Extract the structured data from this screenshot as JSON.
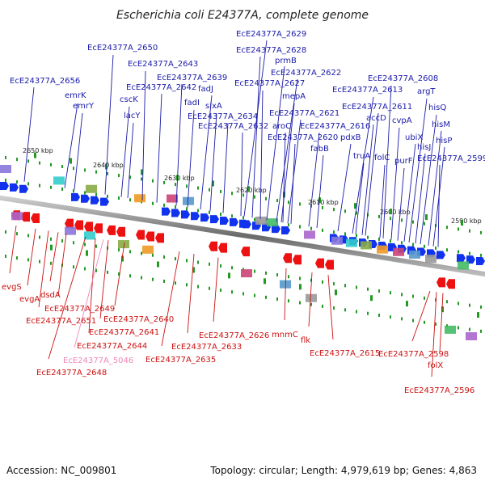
{
  "title": "Escherichia coli E24377A, complete genome",
  "footer": {
    "accession": "Accession: NC_009801",
    "summary": "Topology: circular; Length: 4,979,619 bp; Genes: 4,863"
  },
  "ticks": [
    "2650 kbp",
    "2640 kbp",
    "2630 kbp",
    "2620 kbp",
    "2610 kbp",
    "2600 kbp",
    "2590 kbp"
  ],
  "top_labels": [
    "EcE24377A_2656",
    "EcE24377A_2650",
    "EcE24377A_2643",
    "emrK",
    "emrY",
    "cscK",
    "lacY",
    "EcE24377A_2642",
    "EcE24377A_2639",
    "fadJ",
    "fadI",
    "sixA",
    "EcE24377A_2634",
    "EcE24377A_2632",
    "EcE24377A_2629",
    "EcE24377A_2628",
    "prmB",
    "EcE24377A_2622",
    "EcE24377A_2627",
    "mepA",
    "EcE24377A_2621",
    "aroC",
    "EcE24377A_2620",
    "EcE24377A_2616",
    "fabB",
    "EcE24377A_2613",
    "pdxB",
    "truA",
    "EcE24377A_2611",
    "accD",
    "folC",
    "EcE24377A_2608",
    "cvpA",
    "argT",
    "purF",
    "ubiX",
    "hisQ",
    "hisJ",
    "hisM",
    "hisP",
    "EcE24377A_2599"
  ],
  "bottom_labels": [
    "evgS",
    "evgA",
    "dsdA",
    "EcE24377A_2649",
    "EcE24377A_2651",
    "EcE24377A_2640",
    "EcE24377A_2641",
    "EcE24377A_2644",
    "EcE24377A_5046",
    "EcE24377A_2648",
    "EcE24377A_2626",
    "EcE24377A_2633",
    "EcE24377A_2635",
    "mnmC",
    "flk",
    "EcE24377A_2615",
    "EcE24377A_2598",
    "folX",
    "EcE24377A_2596"
  ],
  "colors": {
    "top_label": "#1a1aaa",
    "bottom_label": "#cc1111",
    "pseudo_label": "#ee88bb",
    "forward_gene": "#1133ee",
    "reverse_gene": "#ee1111",
    "backbone": "#888888",
    "tick_mark": "#229922"
  }
}
